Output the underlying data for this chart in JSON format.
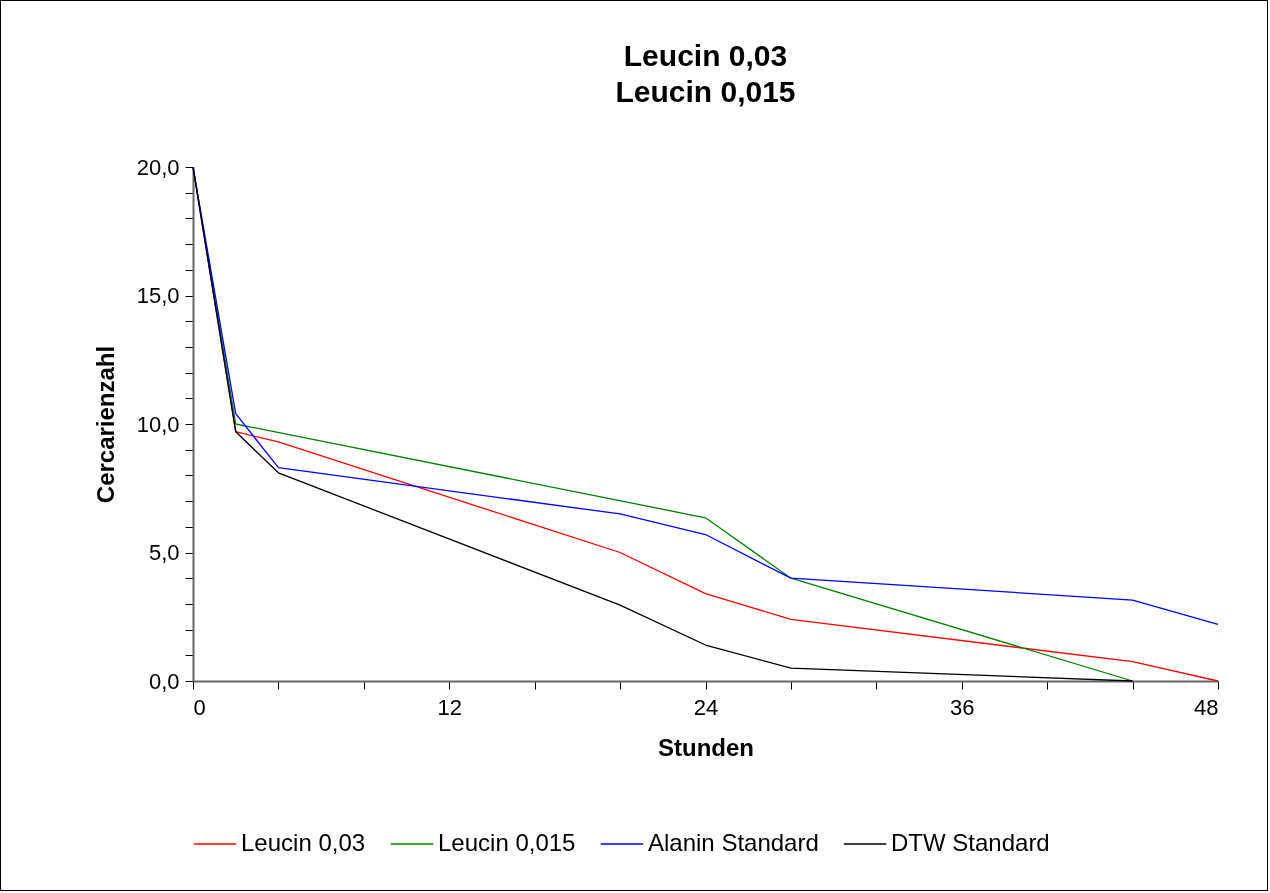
{
  "chart_data": {
    "type": "line",
    "title": "Leucin 0,03\nLeucin 0,015",
    "xlabel": "Stunden",
    "ylabel": "Cercarienzahl",
    "series": [
      {
        "name": "Leucin 0,03",
        "color": "#ff0000",
        "x": [
          0,
          2,
          4,
          20,
          24,
          28,
          44,
          48
        ],
        "values": [
          20,
          9.7,
          9.3,
          5.0,
          3.4,
          2.4,
          0.75,
          0
        ]
      },
      {
        "name": "Leucin 0,015",
        "color": "#008000",
        "x": [
          0,
          2,
          24,
          28,
          44
        ],
        "values": [
          20,
          10.0,
          6.35,
          4.0,
          0
        ]
      },
      {
        "name": "Alanin Standard",
        "color": "#0000ff",
        "x": [
          0,
          2,
          4,
          20,
          24,
          28,
          44,
          48
        ],
        "values": [
          20,
          10.4,
          8.3,
          6.5,
          5.7,
          4.0,
          3.15,
          2.2
        ]
      },
      {
        "name": "DTW Standard",
        "color": "#000000",
        "x": [
          0,
          2,
          4,
          20,
          24,
          28,
          44
        ],
        "values": [
          20,
          9.7,
          8.1,
          2.95,
          1.4,
          0.5,
          0
        ]
      }
    ],
    "xlim": [
      0,
      48
    ],
    "xticks": [
      0,
      {
        "value": 4,
        "label": null
      },
      {
        "value": 8,
        "label": null
      },
      12,
      {
        "value": 16,
        "label": null
      },
      {
        "value": 20,
        "label": null
      },
      24,
      {
        "value": 28,
        "label": null
      },
      {
        "value": 32,
        "label": null
      },
      36,
      {
        "value": 40,
        "label": null
      },
      {
        "value": 44,
        "label": null
      },
      48
    ],
    "ylim": [
      0,
      20
    ],
    "yticks": [
      {
        "value": 0,
        "label": "0,0"
      },
      {
        "value": 1,
        "label": null
      },
      {
        "value": 2,
        "label": null
      },
      {
        "value": 3,
        "label": null
      },
      {
        "value": 4,
        "label": null
      },
      {
        "value": 5,
        "label": "5,0"
      },
      {
        "value": 6,
        "label": null
      },
      {
        "value": 7,
        "label": null
      },
      {
        "value": 8,
        "label": null
      },
      {
        "value": 9,
        "label": null
      },
      {
        "value": 10,
        "label": "10,0"
      },
      {
        "value": 11,
        "label": null
      },
      {
        "value": 12,
        "label": null
      },
      {
        "value": 13,
        "label": null
      },
      {
        "value": 14,
        "label": null
      },
      {
        "value": 15,
        "label": "15,0"
      },
      {
        "value": 16,
        "label": null
      },
      {
        "value": 17,
        "label": null
      },
      {
        "value": 18,
        "label": null
      },
      {
        "value": 19,
        "label": null
      },
      {
        "value": 20,
        "label": "20,0"
      }
    ],
    "grid": false,
    "legend": "bottom"
  }
}
